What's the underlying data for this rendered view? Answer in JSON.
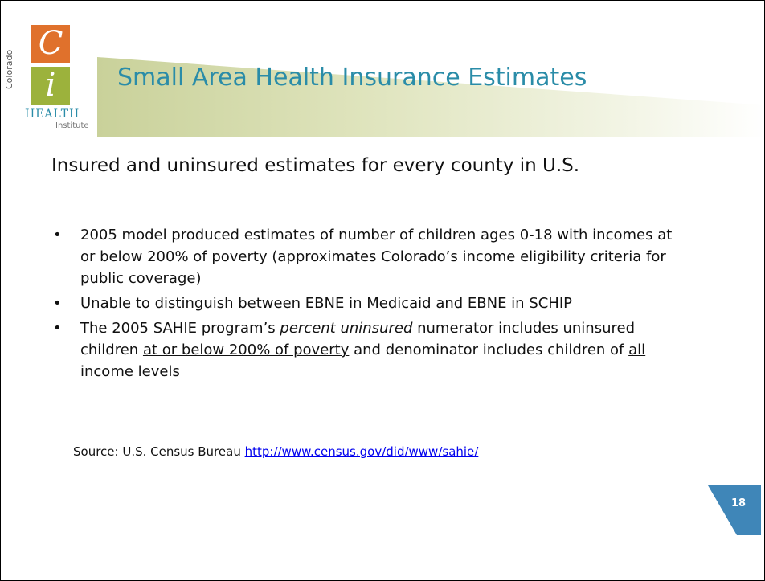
{
  "logo": {
    "letter_top": "C",
    "letter_bottom": "i",
    "side": "Colorado",
    "name": "HEALTH",
    "sub": "Institute"
  },
  "title": "Small Area Health Insurance Estimates",
  "subtitle": "Insured and uninsured estimates for every county in U.S.",
  "bullets": [
    [
      {
        "text": "2005 model produced estimates of number of children ages 0-18 with incomes at or below 200% of poverty (approximates Colorado’s income eligibility criteria for public coverage)"
      }
    ],
    [
      {
        "text": "Unable to distinguish between EBNE in Medicaid and EBNE in SCHIP"
      }
    ],
    [
      {
        "text": "The 2005 SAHIE program’s "
      },
      {
        "text": "percent uninsured",
        "style": "italic"
      },
      {
        "text": " numerator includes uninsured children "
      },
      {
        "text": "at or below 200% of poverty",
        "style": "underline"
      },
      {
        "text": " and denominator includes children of "
      },
      {
        "text": "all",
        "style": "underline"
      },
      {
        "text": " income levels"
      }
    ]
  ],
  "source": {
    "text": "Source: U.S. Census Bureau ",
    "link": "http://www.census.gov/did/www/sahie/"
  },
  "page_number": "18"
}
